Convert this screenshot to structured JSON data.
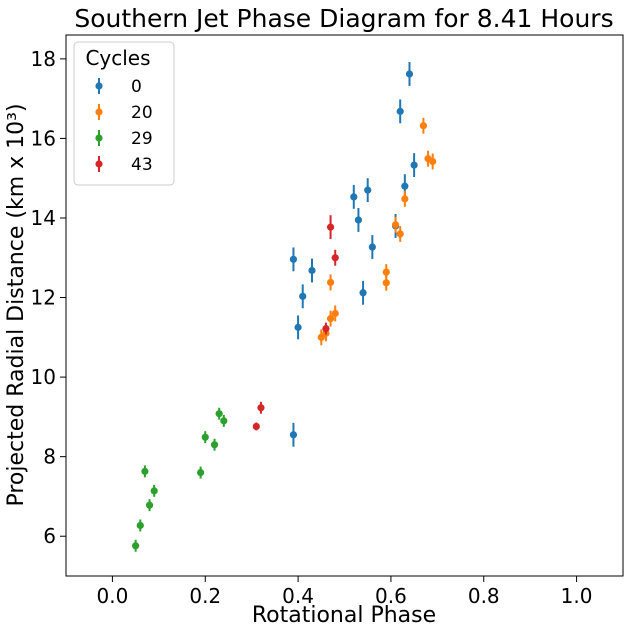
{
  "chart_data": {
    "type": "scatter",
    "title": "Southern Jet Phase Diagram for 8.41 Hours",
    "xlabel": "Rotational Phase",
    "ylabel": "Projected Radial Distance (km x 10³)",
    "xlim": [
      -0.1,
      1.1
    ],
    "ylim": [
      5.0,
      18.6
    ],
    "xticks": [
      0.0,
      0.2,
      0.4,
      0.6,
      0.8,
      1.0
    ],
    "xtick_labels": [
      "0.0",
      "0.2",
      "0.4",
      "0.6",
      "0.8",
      "1.0"
    ],
    "yticks": [
      6,
      8,
      10,
      12,
      14,
      16,
      18
    ],
    "ytick_labels": [
      "6",
      "8",
      "10",
      "12",
      "14",
      "16",
      "18"
    ],
    "legend": {
      "title": "Cycles",
      "location": "upper-left"
    },
    "series": [
      {
        "name": "0",
        "color": "#1f77b4",
        "points": [
          {
            "x": 0.39,
            "y": 12.96,
            "err": 0.3
          },
          {
            "x": 0.4,
            "y": 11.25,
            "err": 0.3
          },
          {
            "x": 0.41,
            "y": 12.03,
            "err": 0.3
          },
          {
            "x": 0.43,
            "y": 12.68,
            "err": 0.3
          },
          {
            "x": 0.52,
            "y": 14.53,
            "err": 0.3
          },
          {
            "x": 0.53,
            "y": 13.95,
            "err": 0.3
          },
          {
            "x": 0.54,
            "y": 12.12,
            "err": 0.3
          },
          {
            "x": 0.55,
            "y": 14.7,
            "err": 0.3
          },
          {
            "x": 0.56,
            "y": 13.27,
            "err": 0.3
          },
          {
            "x": 0.61,
            "y": 13.8,
            "err": 0.3
          },
          {
            "x": 0.62,
            "y": 16.68,
            "err": 0.3
          },
          {
            "x": 0.63,
            "y": 14.8,
            "err": 0.3
          },
          {
            "x": 0.64,
            "y": 17.62,
            "err": 0.3
          },
          {
            "x": 0.65,
            "y": 15.33,
            "err": 0.3
          },
          {
            "x": 0.39,
            "y": 8.55,
            "err": 0.3
          }
        ]
      },
      {
        "name": "20",
        "color": "#ff7f0e",
        "points": [
          {
            "x": 0.45,
            "y": 11.0,
            "err": 0.2
          },
          {
            "x": 0.46,
            "y": 11.1,
            "err": 0.2
          },
          {
            "x": 0.47,
            "y": 11.47,
            "err": 0.2
          },
          {
            "x": 0.47,
            "y": 12.38,
            "err": 0.2
          },
          {
            "x": 0.48,
            "y": 11.6,
            "err": 0.2
          },
          {
            "x": 0.59,
            "y": 12.37,
            "err": 0.2
          },
          {
            "x": 0.59,
            "y": 12.64,
            "err": 0.2
          },
          {
            "x": 0.61,
            "y": 13.83,
            "err": 0.2
          },
          {
            "x": 0.62,
            "y": 13.6,
            "err": 0.2
          },
          {
            "x": 0.63,
            "y": 14.48,
            "err": 0.2
          },
          {
            "x": 0.67,
            "y": 16.32,
            "err": 0.2
          },
          {
            "x": 0.68,
            "y": 15.49,
            "err": 0.2
          },
          {
            "x": 0.69,
            "y": 15.42,
            "err": 0.2
          }
        ]
      },
      {
        "name": "29",
        "color": "#2ca02c",
        "points": [
          {
            "x": 0.05,
            "y": 5.76,
            "err": 0.15
          },
          {
            "x": 0.06,
            "y": 6.27,
            "err": 0.15
          },
          {
            "x": 0.07,
            "y": 7.63,
            "err": 0.15
          },
          {
            "x": 0.08,
            "y": 6.78,
            "err": 0.15
          },
          {
            "x": 0.09,
            "y": 7.14,
            "err": 0.15
          },
          {
            "x": 0.19,
            "y": 7.6,
            "err": 0.15
          },
          {
            "x": 0.2,
            "y": 8.49,
            "err": 0.15
          },
          {
            "x": 0.22,
            "y": 8.3,
            "err": 0.15
          },
          {
            "x": 0.23,
            "y": 9.08,
            "err": 0.15
          },
          {
            "x": 0.24,
            "y": 8.9,
            "err": 0.15
          }
        ]
      },
      {
        "name": "43",
        "color": "#d62728",
        "points": [
          {
            "x": 0.31,
            "y": 8.76,
            "err": 0.1
          },
          {
            "x": 0.32,
            "y": 9.23,
            "err": 0.15
          },
          {
            "x": 0.46,
            "y": 11.22,
            "err": 0.15
          },
          {
            "x": 0.47,
            "y": 13.77,
            "err": 0.3
          },
          {
            "x": 0.48,
            "y": 13.0,
            "err": 0.2
          }
        ]
      }
    ]
  }
}
